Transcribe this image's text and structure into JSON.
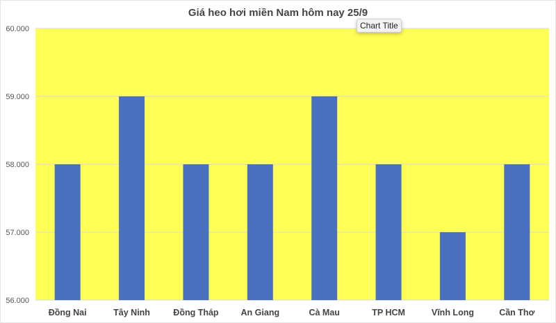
{
  "chart_data": {
    "type": "bar",
    "title": "Giá heo hơi miền Nam hôm nay 25/9",
    "categories": [
      "Đồng Nai",
      "Tây Ninh",
      "Đồng Tháp",
      "An Giang",
      "Cà Mau",
      "TP HCM",
      "Vĩnh Long",
      "Cần Thơ"
    ],
    "values": [
      58000,
      59000,
      58000,
      58000,
      59000,
      58000,
      57000,
      58000
    ],
    "ylim": [
      56000,
      60000
    ],
    "yticks": [
      56000,
      57000,
      58000,
      59000,
      60000
    ],
    "ytick_labels": [
      "56.000",
      "57.000",
      "58.000",
      "59.000",
      "60.000"
    ],
    "xlabel": "",
    "ylabel": "",
    "grid": true,
    "legend": "none",
    "colors": {
      "bar": "#4a70c0",
      "plot_background": "#ffff55",
      "gridline": "#d9d9d9"
    }
  },
  "tooltip": {
    "text": "Chart Title"
  }
}
